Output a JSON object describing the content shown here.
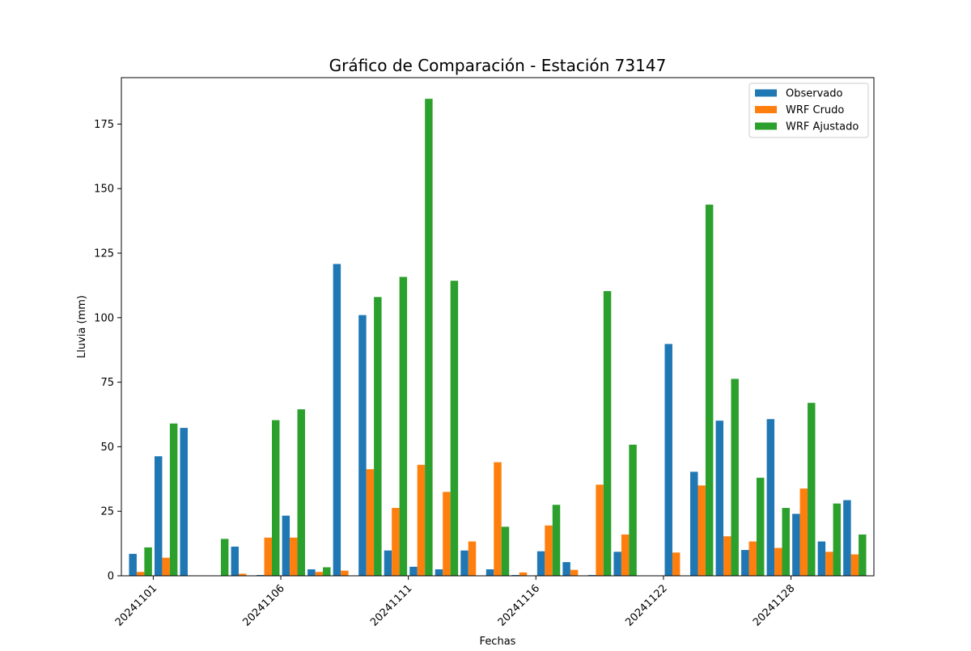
{
  "chart_data": {
    "type": "bar",
    "title": "Gráfico de Comparación - Estación 73147",
    "xlabel": "Fechas",
    "ylabel": "Lluvia (mm)",
    "ylim": [
      0,
      193
    ],
    "yticks": [
      0,
      25,
      50,
      75,
      100,
      125,
      150,
      175
    ],
    "xtick_labels": [
      "20241101",
      "20241106",
      "20241111",
      "20241116",
      "20241122",
      "20241128"
    ],
    "xtick_positions": [
      0.5,
      5.5,
      10.5,
      15.5,
      20.5,
      25.5
    ],
    "grid": false,
    "legend_position": "top-right",
    "series": [
      {
        "name": "Observado",
        "color": "#1f77b4",
        "values": [
          8.5,
          46.3,
          57.3,
          0,
          11.3,
          0.3,
          23.3,
          2.5,
          120.8,
          101.0,
          9.8,
          3.5,
          2.5,
          9.8,
          2.5,
          0.3,
          9.5,
          5.3,
          0.3,
          9.3,
          0,
          89.8,
          40.3,
          60.1,
          10.0,
          60.7,
          24.0,
          13.3,
          29.3
        ]
      },
      {
        "name": "WRF Crudo",
        "color": "#ff7f0e",
        "values": [
          1.5,
          7.0,
          0,
          0,
          0.8,
          14.8,
          14.8,
          1.5,
          2.0,
          41.3,
          26.3,
          43.0,
          32.5,
          13.3,
          44.0,
          1.3,
          19.5,
          2.3,
          35.3,
          16.0,
          0,
          9.0,
          35.0,
          15.3,
          13.3,
          10.8,
          33.8,
          9.3,
          8.3
        ]
      },
      {
        "name": "WRF Ajustado",
        "color": "#2ca02c",
        "values": [
          11.0,
          59.0,
          0,
          14.3,
          0,
          60.3,
          64.5,
          3.3,
          0,
          108.0,
          115.8,
          184.8,
          114.3,
          0,
          19.0,
          0,
          27.5,
          0,
          110.3,
          50.8,
          0,
          0,
          143.8,
          76.3,
          38.0,
          26.3,
          67.0,
          28.0,
          16.0
        ]
      }
    ]
  }
}
